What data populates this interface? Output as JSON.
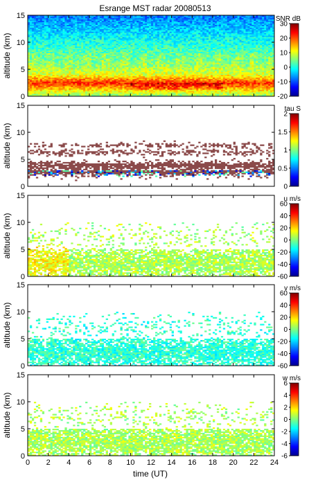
{
  "title": "Esrange MST radar 20080513",
  "xlabel": "time (UT)",
  "colors": {
    "colormap": [
      "#00008f",
      "#0000ff",
      "#0080ff",
      "#00ffff",
      "#80ff80",
      "#ffff00",
      "#ff8000",
      "#ff0000",
      "#800000"
    ],
    "nodata": "#ffffff",
    "tau_special": "#8b4a4a",
    "snr_background": "#3a5fcd"
  },
  "chart_data": [
    {
      "type": "heatmap",
      "name": "SNR",
      "cbar_label": "SNR dB",
      "cbar_range": [
        -20,
        30
      ],
      "cbar_ticks": [
        "30",
        "20",
        "10",
        "0",
        "-10",
        "-20"
      ],
      "xlim": [
        0,
        24
      ],
      "x_ticks": [
        "0",
        "2",
        "4",
        "6",
        "8",
        "10",
        "12",
        "14",
        "16",
        "18",
        "20",
        "22",
        "24"
      ],
      "ylim": [
        0,
        15
      ],
      "y_ticks": [
        "0",
        "5",
        "10",
        "15"
      ],
      "ylabel": "altitude (km)",
      "approx_profile": {
        "altitude_km": [
          0,
          1.5,
          2.5,
          4,
          6,
          8,
          10,
          12,
          15
        ],
        "snr_db": [
          5,
          15,
          22,
          10,
          5,
          3,
          0,
          -3,
          -8
        ]
      }
    },
    {
      "type": "heatmap",
      "name": "tau",
      "cbar_label": "tau S",
      "cbar_range": [
        0,
        2
      ],
      "cbar_ticks": [
        "2",
        "1.5",
        "1",
        "0.5",
        "0"
      ],
      "xlim": [
        0,
        24
      ],
      "x_ticks": [
        "0",
        "2",
        "4",
        "6",
        "8",
        "10",
        "12",
        "14",
        "16",
        "18",
        "20",
        "22",
        "24"
      ],
      "ylim": [
        0,
        15
      ],
      "y_ticks": [
        "0",
        "5",
        "10",
        "15"
      ],
      "ylabel": "altitude (km)",
      "data_altitude_range_km": [
        1,
        8
      ]
    },
    {
      "type": "heatmap",
      "name": "u",
      "cbar_label": "u m/s",
      "cbar_range": [
        -60,
        60
      ],
      "cbar_ticks": [
        "60",
        "40",
        "20",
        "0",
        "-20",
        "-40",
        "-60"
      ],
      "xlim": [
        0,
        24
      ],
      "x_ticks": [
        "0",
        "2",
        "4",
        "6",
        "8",
        "10",
        "12",
        "14",
        "16",
        "18",
        "20",
        "22",
        "24"
      ],
      "ylim": [
        0,
        15
      ],
      "y_ticks": [
        "0",
        "5",
        "10",
        "15"
      ],
      "ylabel": "altitude (km)",
      "typical_value_ms": 5
    },
    {
      "type": "heatmap",
      "name": "v",
      "cbar_label": "v m/s",
      "cbar_range": [
        -60,
        60
      ],
      "cbar_ticks": [
        "60",
        "40",
        "20",
        "0",
        "-20",
        "-40",
        "-60"
      ],
      "xlim": [
        0,
        24
      ],
      "x_ticks": [
        "0",
        "2",
        "4",
        "6",
        "8",
        "10",
        "12",
        "14",
        "16",
        "18",
        "20",
        "22",
        "24"
      ],
      "ylim": [
        0,
        15
      ],
      "y_ticks": [
        "0",
        "5",
        "10",
        "15"
      ],
      "ylabel": "altitude (km)",
      "typical_value_ms": -10
    },
    {
      "type": "heatmap",
      "name": "w",
      "cbar_label": "w m/s",
      "cbar_range": [
        -6,
        6
      ],
      "cbar_ticks": [
        "6",
        "4",
        "2",
        "0",
        "-2",
        "-4",
        "-6"
      ],
      "xlim": [
        0,
        24
      ],
      "x_ticks": [
        "0",
        "2",
        "4",
        "6",
        "8",
        "10",
        "12",
        "14",
        "16",
        "18",
        "20",
        "22",
        "24"
      ],
      "ylim": [
        0,
        15
      ],
      "y_ticks": [
        "0",
        "5",
        "10",
        "15"
      ],
      "ylabel": "altitude (km)",
      "typical_value_ms": 0.5
    }
  ]
}
